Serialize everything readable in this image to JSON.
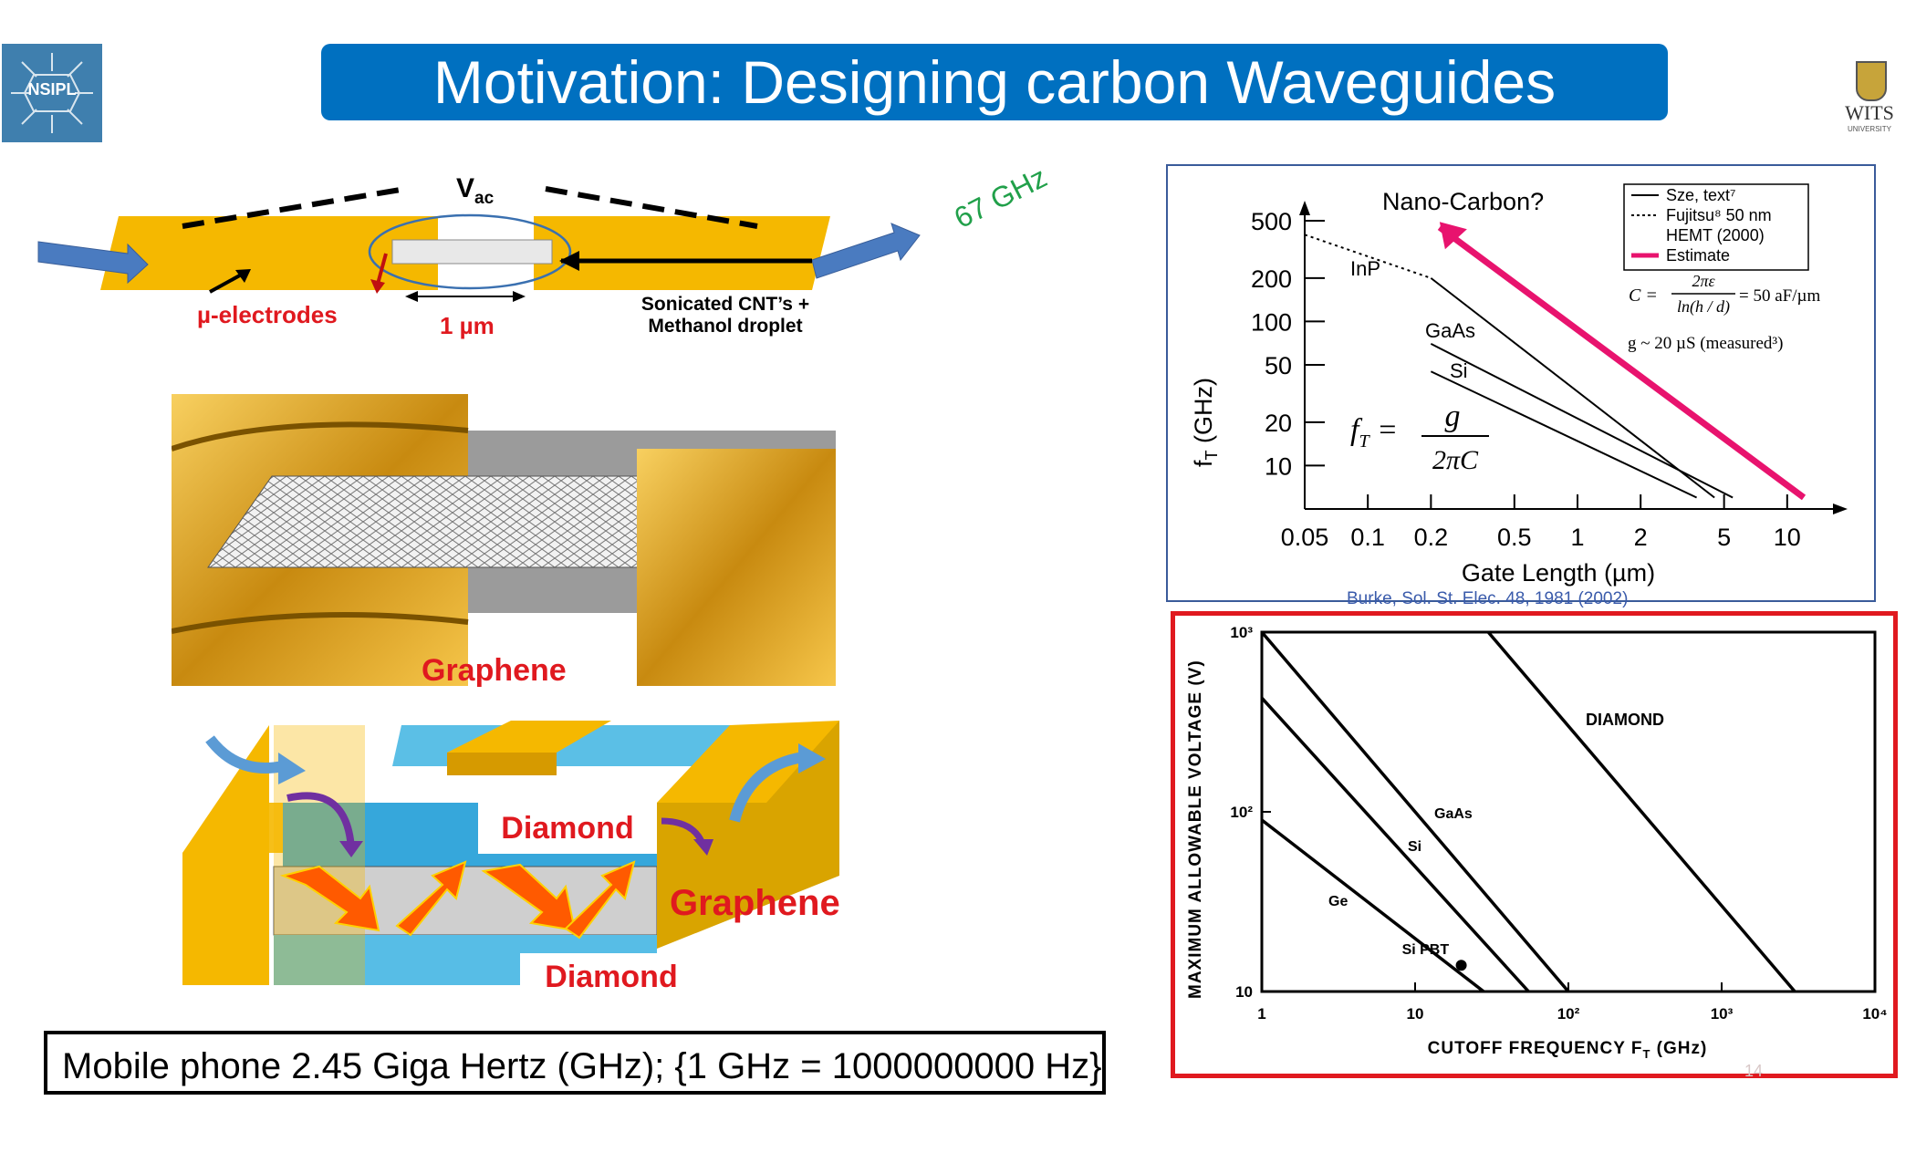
{
  "slide": {
    "title": "Motivation: Designing carbon Waveguides",
    "logo_left_text": "NSIPL",
    "logo_right_text": "WITS",
    "logo_right_subtext": "UNIVERSITY",
    "bottom_note": "Mobile phone 2.45 Giga Hertz (GHz); {1 GHz = 1000000000 Hz}",
    "page_number": "14"
  },
  "top_diagram": {
    "vac": "V",
    "vac_sub": "ac",
    "freq": "67 GHz",
    "electrodes": "µ-electrodes",
    "scale": "1 µm",
    "cnt_line1": "Sonicated CNT’s +",
    "cnt_line2": "Methanol droplet"
  },
  "middle_image": {
    "label": "Graphene"
  },
  "bottom_diagram": {
    "diamond_top": "Diamond",
    "graphene": "Graphene",
    "diamond_bottom": "Diamond"
  },
  "citation": "Burke, Sol. St. Elec. 48, 1981 (2002)",
  "colors": {
    "title_bg": "#0070c0",
    "gold": "#f5b800",
    "red": "#e0191f",
    "green": "#21a04a",
    "pink": "#e8136e",
    "blue": "#5b9bd5"
  },
  "chart_data": [
    {
      "type": "line",
      "xlabel": "Gate Length (µm)",
      "ylabel": "f",
      "ylabel_sub": "T",
      "ylabel_unit": "(GHz)",
      "x_scale": "log",
      "y_scale": "log",
      "xlim": [
        0.05,
        13
      ],
      "ylim": [
        5,
        500
      ],
      "x_ticks": [
        0.05,
        0.1,
        0.2,
        0.5,
        1,
        2,
        5,
        10
      ],
      "x_tick_labels": [
        "0.05",
        "0.1",
        "0.2",
        "0.5",
        "1",
        "2",
        "5",
        "10"
      ],
      "y_ticks": [
        500,
        200,
        100,
        50,
        20,
        10
      ],
      "y_tick_labels": [
        "500",
        "200",
        "100",
        "50",
        "20",
        "10"
      ],
      "series": [
        {
          "name": "InP",
          "points": [
            [
              0.2,
              200
            ],
            [
              4.5,
              6
            ]
          ]
        },
        {
          "name": "GaAs",
          "points": [
            [
              0.2,
              70
            ],
            [
              5.5,
              6
            ]
          ]
        },
        {
          "name": "Si",
          "points": [
            [
              0.2,
              45
            ],
            [
              3.7,
              6
            ]
          ]
        },
        {
          "name": "Fujitsu⁸ 50 nm HEMT (2000)",
          "points": [
            [
              0.05,
              400
            ],
            [
              0.2,
              200
            ]
          ]
        },
        {
          "name": "Estimate",
          "points": [
            [
              12,
              6
            ],
            [
              0.22,
              450
            ]
          ]
        }
      ],
      "legend": [
        "Sze, text⁷",
        "Fujitsu⁸ 50 nm",
        "HEMT (2000)",
        "Estimate"
      ],
      "legend_position": "top-right",
      "annotation": "Nano-Carbon?",
      "formula_ft": [
        "f",
        "T",
        "g",
        "2πC"
      ],
      "formula_c": [
        "C =",
        "2πε",
        "ln(h / d)",
        "= 50 aF/µm"
      ],
      "measured_note": "g ~ 20 µS (measured³)"
    },
    {
      "type": "line",
      "xlabel": "CUTOFF FREQUENCY F",
      "xlabel_sub": "T",
      "xlabel_unit": "(GHz)",
      "ylabel": "MAXIMUM ALLOWABLE VOLTAGE (V)",
      "x_scale": "log",
      "y_scale": "log",
      "xlim": [
        1,
        10000
      ],
      "ylim": [
        10,
        1000
      ],
      "x_tick_labels": [
        "1",
        "10",
        "10²",
        "10³",
        "10⁴"
      ],
      "y_tick_labels": [
        "10",
        "10²",
        "10³"
      ],
      "series": [
        {
          "name": "Ge",
          "points": [
            [
              1,
              90
            ],
            [
              28,
              10
            ]
          ]
        },
        {
          "name": "Si",
          "points": [
            [
              1,
              430
            ],
            [
              55,
              10
            ]
          ]
        },
        {
          "name": "GaAs",
          "points": [
            [
              1,
              1000
            ],
            [
              100,
              10
            ]
          ]
        },
        {
          "name": "DIAMOND",
          "points": [
            [
              30,
              1000
            ],
            [
              3000,
              10
            ]
          ]
        }
      ],
      "point": {
        "name": "Si PBT",
        "x": 20,
        "y": 14
      }
    }
  ]
}
